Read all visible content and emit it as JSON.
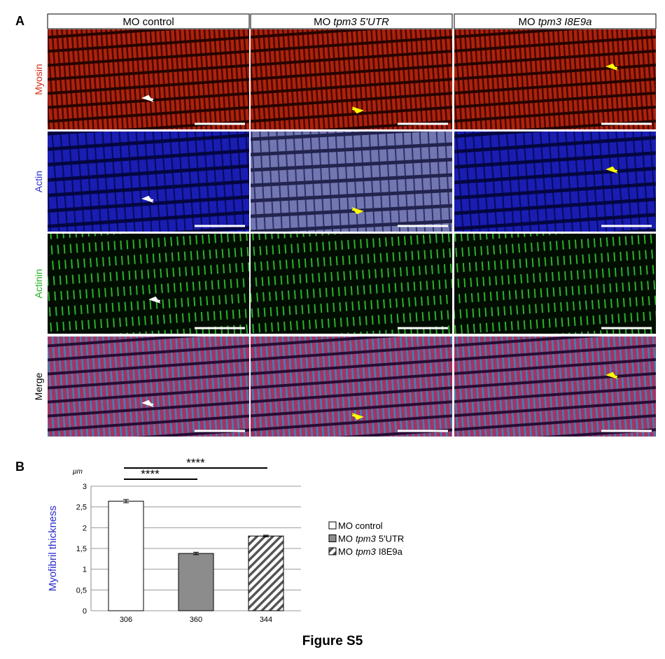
{
  "panel_a": {
    "label": "A",
    "columns": [
      {
        "text": "MO control"
      },
      {
        "text": "MO",
        "italic": "tpm3 5'UTR"
      },
      {
        "text": "MO",
        "italic": "tpm3 I8E9a"
      }
    ],
    "rows": [
      "Myosin",
      "Actin",
      "Actinin",
      "Merge"
    ]
  },
  "panel_b": {
    "label": "B"
  },
  "figure_caption": "Figure S5",
  "chart_data": {
    "type": "bar",
    "y_label": "Myofibril thickness",
    "y_unit": "µm",
    "categories": [
      "306",
      "360",
      "344"
    ],
    "values": [
      2.64,
      1.38,
      1.8
    ],
    "errors": [
      0.04,
      0.03,
      0.02
    ],
    "bar_styles": [
      {
        "fill": "#ffffff",
        "pattern": "none"
      },
      {
        "fill": "#8c8c8c",
        "pattern": "none"
      },
      {
        "fill": "#ffffff",
        "pattern": "diagonal"
      }
    ],
    "legend": [
      {
        "text": "MO control"
      },
      {
        "text": "MO",
        "italic": "tpm3",
        "rest": "5'UTR"
      },
      {
        "text": "MO",
        "italic": "tpm3",
        "rest": "I8E9a"
      }
    ],
    "comparisons": [
      {
        "label": "****",
        "groups": [
          0,
          1
        ]
      },
      {
        "label": "****",
        "groups": [
          0,
          2
        ]
      }
    ],
    "ylim": [
      0,
      3
    ],
    "yticks": [
      0,
      {
        "value": 0.5,
        "label": "0,5"
      },
      1,
      {
        "value": 1.5,
        "label": "1,5"
      },
      2,
      {
        "value": 2.5,
        "label": "2,5"
      },
      3
    ],
    "grid": true
  }
}
